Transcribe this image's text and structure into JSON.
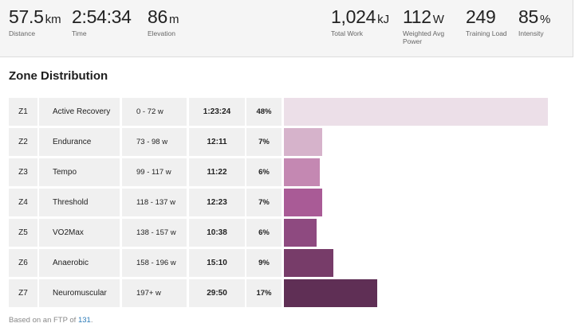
{
  "stats": [
    {
      "value": "57.5",
      "unit": "km",
      "label": "Distance"
    },
    {
      "value": "2:54:34",
      "unit": "",
      "label": "Time"
    },
    {
      "value": "86",
      "unit": "m",
      "label": "Elevation"
    },
    {
      "value": "1,024",
      "unit": "kJ",
      "label": "Total Work"
    },
    {
      "value": "112",
      "unit": "W",
      "label": "Weighted Avg Power"
    },
    {
      "value": "249",
      "unit": "",
      "label": "Training Load"
    },
    {
      "value": "85",
      "unit": "%",
      "label": "Intensity"
    }
  ],
  "section_title": "Zone Distribution",
  "zones": [
    {
      "code": "Z1",
      "name": "Active Recovery",
      "range": "0 - 72 w",
      "time": "1:23:24",
      "percent_label": "48%",
      "fraction": 0.48,
      "color": "#ecdfe8"
    },
    {
      "code": "Z2",
      "name": "Endurance",
      "range": "73 - 98 w",
      "time": "12:11",
      "percent_label": "7%",
      "fraction": 0.07,
      "color": "#d6b3cb"
    },
    {
      "code": "Z3",
      "name": "Tempo",
      "range": "99 - 117 w",
      "time": "11:22",
      "percent_label": "6%",
      "fraction": 0.065,
      "color": "#c488b2"
    },
    {
      "code": "Z4",
      "name": "Threshold",
      "range": "118 - 137 w",
      "time": "12:23",
      "percent_label": "7%",
      "fraction": 0.07,
      "color": "#a95b96"
    },
    {
      "code": "Z5",
      "name": "VO2Max",
      "range": "138 - 157 w",
      "time": "10:38",
      "percent_label": "6%",
      "fraction": 0.06,
      "color": "#8e4a80"
    },
    {
      "code": "Z6",
      "name": "Anaerobic",
      "range": "158 - 196 w",
      "time": "15:10",
      "percent_label": "9%",
      "fraction": 0.09,
      "color": "#773c69"
    },
    {
      "code": "Z7",
      "name": "Neuromuscular",
      "range": "197+ w",
      "time": "29:50",
      "percent_label": "17%",
      "fraction": 0.17,
      "color": "#5f2f55"
    }
  ],
  "footer": {
    "prefix": "Based on an FTP of ",
    "ftp": "131",
    "suffix": "."
  }
}
